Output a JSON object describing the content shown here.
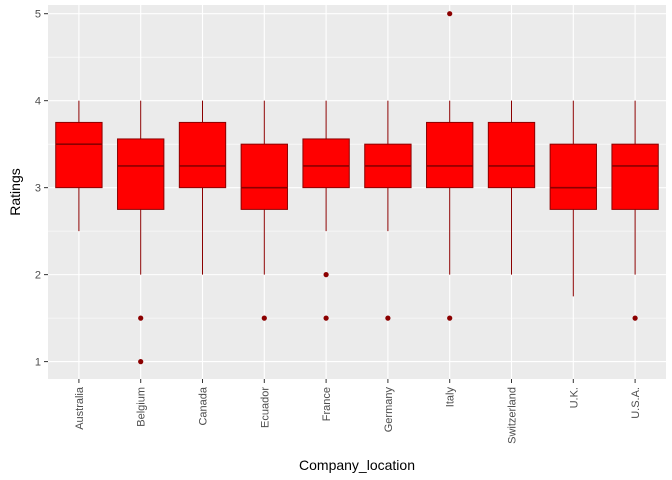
{
  "chart_data": {
    "type": "boxplot",
    "xlabel": "Company_location",
    "ylabel": "Ratings",
    "ylim": [
      0.8,
      5.1
    ],
    "yticks": [
      1,
      2,
      3,
      4,
      5
    ],
    "grid": true,
    "colors": {
      "panel_bg": "#ebebeb",
      "grid": "#ffffff",
      "box_fill": "#ff0000",
      "box_line": "#8b0000",
      "outlier": "#8b0000"
    },
    "categories": [
      "Australia",
      "Belgium",
      "Canada",
      "Ecuador",
      "France",
      "Germany",
      "Italy",
      "Switzerland",
      "U.K.",
      "U.S.A."
    ],
    "boxes": [
      {
        "min": 2.5,
        "q1": 3.0,
        "median": 3.5,
        "q3": 3.75,
        "max": 4.0,
        "outliers": []
      },
      {
        "min": 2.0,
        "q1": 2.75,
        "median": 3.25,
        "q3": 3.56,
        "max": 4.0,
        "outliers": [
          1.5,
          1.0
        ]
      },
      {
        "min": 2.0,
        "q1": 3.0,
        "median": 3.25,
        "q3": 3.75,
        "max": 4.0,
        "outliers": []
      },
      {
        "min": 2.0,
        "q1": 2.75,
        "median": 3.0,
        "q3": 3.5,
        "max": 4.0,
        "outliers": [
          1.5
        ]
      },
      {
        "min": 2.5,
        "q1": 3.0,
        "median": 3.25,
        "q3": 3.56,
        "max": 4.0,
        "outliers": [
          2.0,
          1.5
        ]
      },
      {
        "min": 2.5,
        "q1": 3.0,
        "median": 3.25,
        "q3": 3.5,
        "max": 4.0,
        "outliers": [
          1.5
        ]
      },
      {
        "min": 2.0,
        "q1": 3.0,
        "median": 3.25,
        "q3": 3.75,
        "max": 4.0,
        "outliers": [
          5.0,
          1.5
        ]
      },
      {
        "min": 2.0,
        "q1": 3.0,
        "median": 3.25,
        "q3": 3.75,
        "max": 4.0,
        "outliers": []
      },
      {
        "min": 1.75,
        "q1": 2.75,
        "median": 3.0,
        "q3": 3.5,
        "max": 4.0,
        "outliers": []
      },
      {
        "min": 2.0,
        "q1": 2.75,
        "median": 3.25,
        "q3": 3.5,
        "max": 4.0,
        "outliers": [
          1.5
        ]
      }
    ]
  }
}
